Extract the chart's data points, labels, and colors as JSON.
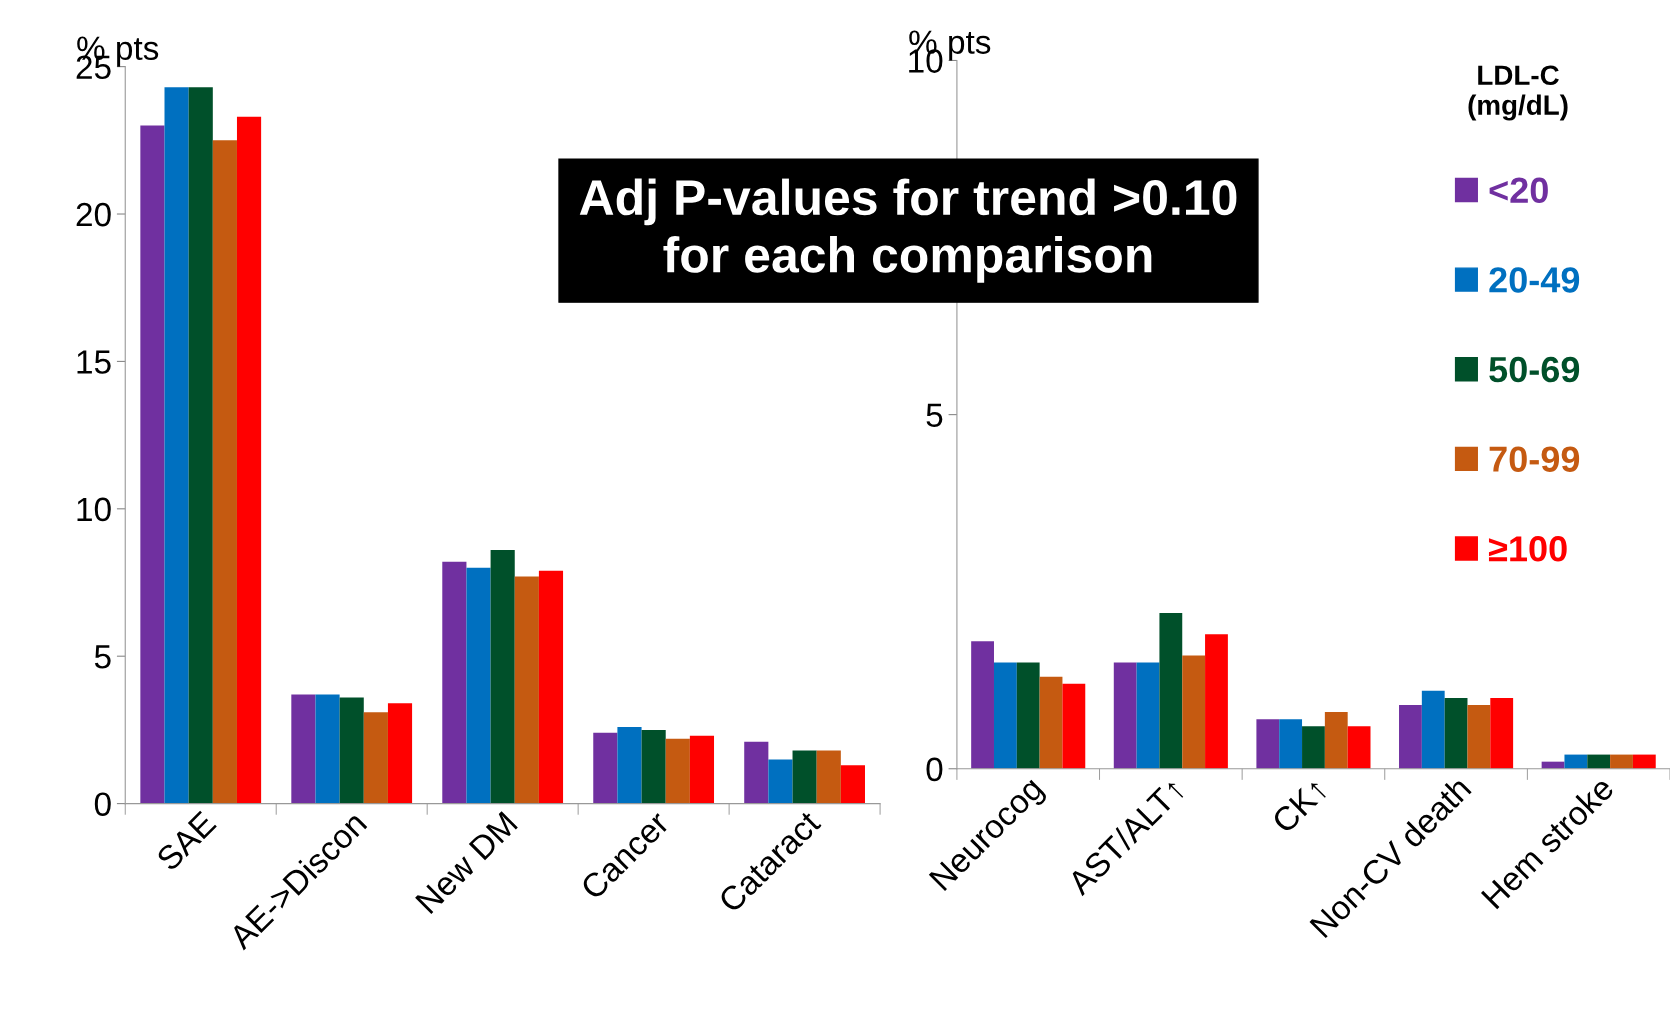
{
  "chart_data": [
    {
      "type": "bar",
      "ylabel": "% pts",
      "categories": [
        "SAE",
        "AE->Discon",
        "New DM",
        "Cancer",
        "Cataract"
      ],
      "series": [
        {
          "color": "#7030a0",
          "values": [
            23.0,
            3.7,
            8.2,
            2.4,
            2.1
          ]
        },
        {
          "color": "#0070c0",
          "values": [
            24.3,
            3.7,
            8.0,
            2.6,
            1.5
          ]
        },
        {
          "color": "#00502a",
          "values": [
            24.3,
            3.6,
            8.6,
            2.5,
            1.8
          ]
        },
        {
          "color": "#c55a11",
          "values": [
            22.5,
            3.1,
            7.7,
            2.2,
            1.8
          ]
        },
        {
          "color": "#ff0000",
          "values": [
            23.3,
            3.4,
            7.9,
            2.3,
            1.3
          ]
        }
      ],
      "ylim": [
        0,
        25
      ],
      "yticks": [
        0,
        5,
        10,
        15,
        20,
        25
      ],
      "grid": false,
      "legend": false
    },
    {
      "type": "bar",
      "ylabel": "% pts",
      "categories": [
        "Neurocog",
        "AST/ALT↑",
        "CK↑",
        "Non-CV death",
        "Hem stroke"
      ],
      "series": [
        {
          "name": "<20",
          "color": "#7030a0",
          "values": [
            1.8,
            1.5,
            0.7,
            0.9,
            0.1
          ]
        },
        {
          "name": "20-49",
          "color": "#0070c0",
          "values": [
            1.5,
            1.5,
            0.7,
            1.1,
            0.2
          ]
        },
        {
          "name": "50-69",
          "color": "#00502a",
          "values": [
            1.5,
            2.2,
            0.6,
            1.0,
            0.2
          ]
        },
        {
          "name": "70-99",
          "color": "#c55a11",
          "values": [
            1.3,
            1.6,
            0.8,
            0.9,
            0.2
          ]
        },
        {
          "name": "≥100",
          "color": "#ff0000",
          "values": [
            1.2,
            1.9,
            0.6,
            1.0,
            0.2
          ]
        }
      ],
      "ylim": [
        0,
        10
      ],
      "yticks": [
        0,
        5,
        10
      ],
      "grid": false,
      "legend": "top right",
      "legend_title": "LDL-C\n(mg/dL)",
      "annotations": [
        "Adj P-values for trend >0.10\nfor each comparison"
      ]
    }
  ]
}
